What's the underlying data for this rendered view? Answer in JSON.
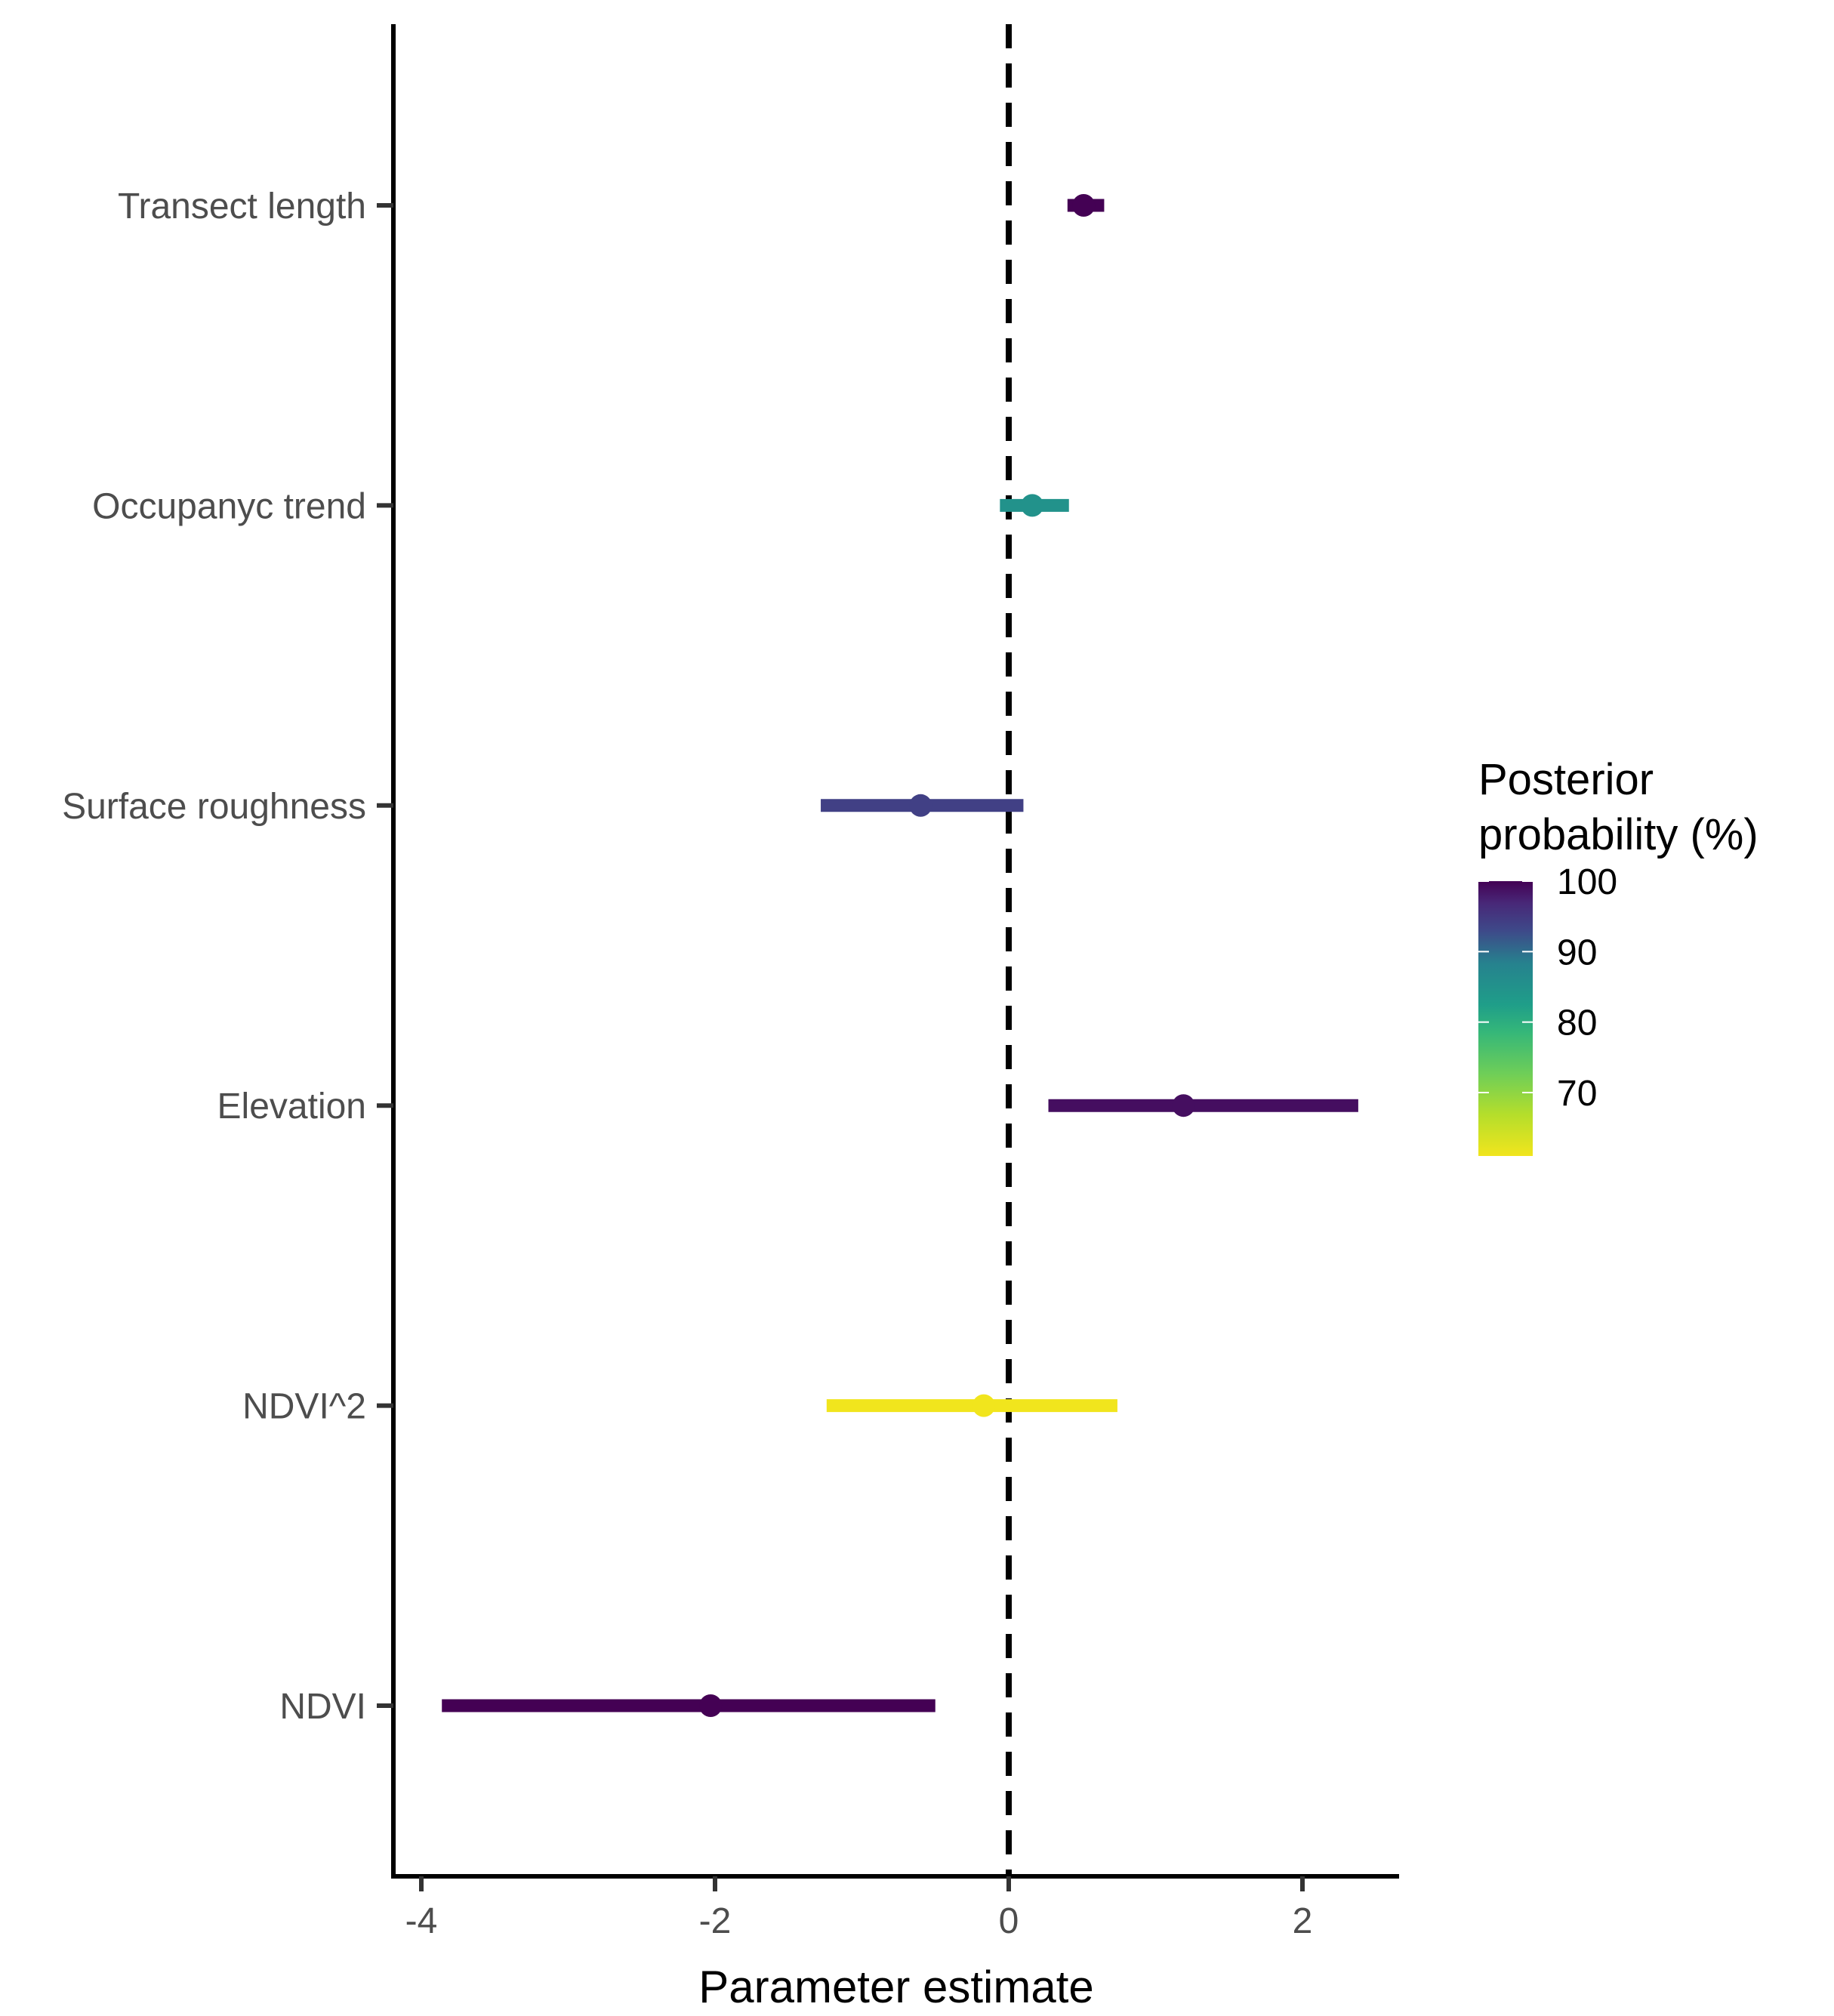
{
  "chart_data": {
    "type": "forest",
    "xlabel": "Parameter estimate",
    "ylabel": "",
    "xlim": [
      -4.2,
      2.7
    ],
    "xticks": [
      -4,
      -2,
      0,
      2
    ],
    "xtick_labels": [
      "-4",
      "-2",
      "0",
      "2"
    ],
    "reference_line": {
      "x": 0,
      "style": "dashed"
    },
    "rows": [
      {
        "label": "Transect length",
        "estimate": 0.51,
        "lower": 0.4,
        "upper": 0.65,
        "posterior_probability": 100
      },
      {
        "label": "Occupanyc trend",
        "estimate": 0.16,
        "lower": -0.06,
        "upper": 0.41,
        "posterior_probability": 85
      },
      {
        "label": "Surface roughness",
        "estimate": -0.6,
        "lower": -1.28,
        "upper": 0.1,
        "posterior_probability": 94
      },
      {
        "label": "Elevation",
        "estimate": 1.19,
        "lower": 0.27,
        "upper": 2.38,
        "posterior_probability": 99
      },
      {
        "label": "NDVI^2",
        "estimate": -0.17,
        "lower": -1.24,
        "upper": 0.74,
        "posterior_probability": 61
      },
      {
        "label": "NDVI",
        "estimate": -2.03,
        "lower": -3.86,
        "upper": -0.5,
        "posterior_probability": 100
      }
    ],
    "legend": {
      "title_lines": [
        "Posterior",
        "probability (%)"
      ],
      "range": [
        61,
        100
      ],
      "ticks": [
        100,
        90,
        80,
        70
      ],
      "tick_labels": [
        "100",
        "90",
        "80",
        "70"
      ],
      "placement": "right",
      "colormap": "viridis"
    },
    "grid": false
  }
}
